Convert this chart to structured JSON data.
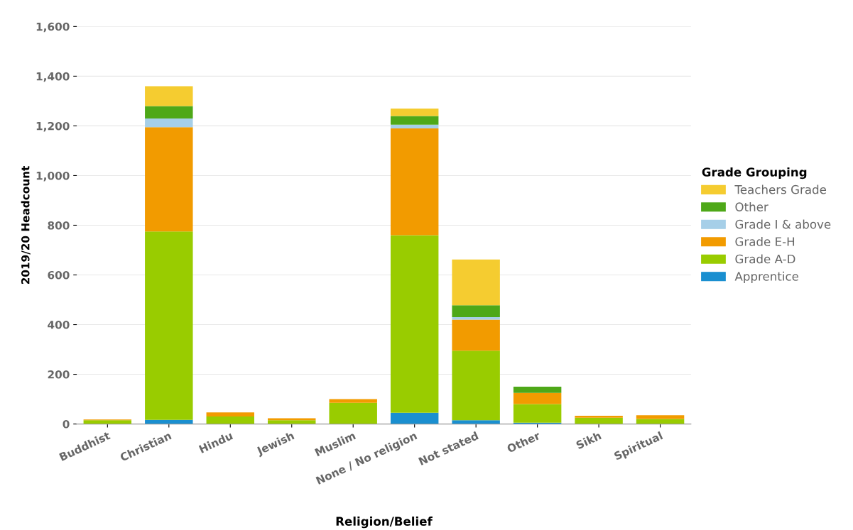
{
  "chart_data": {
    "type": "bar",
    "stacked": true,
    "xlabel": "Religion/Belief",
    "ylabel": "2019/20 Headcount",
    "legend_title": "Grade Grouping",
    "legend": "right",
    "grid": "y",
    "categories": [
      "Buddhist",
      "Christian",
      "Hindu",
      "Jewish",
      "Muslim",
      "None / No religion",
      "Not stated",
      "Other",
      "Sikh",
      "Spiritual"
    ],
    "ylim": [
      0,
      1600
    ],
    "yticks": [
      {
        "value": 0,
        "label": "0"
      },
      {
        "value": 200,
        "label": "200"
      },
      {
        "value": 400,
        "label": "400"
      },
      {
        "value": 600,
        "label": "600"
      },
      {
        "value": 800,
        "label": "800"
      },
      {
        "value": 1000,
        "label": "1,000"
      },
      {
        "value": 1200,
        "label": "1,200"
      },
      {
        "value": 1400,
        "label": "1,400"
      },
      {
        "value": 1600,
        "label": "1,600"
      }
    ],
    "series": [
      {
        "name": "Apprentice",
        "color": "#1a8fd0",
        "values": [
          null,
          17,
          null,
          null,
          null,
          45,
          15,
          5,
          null,
          null
        ]
      },
      {
        "name": "Grade A-D",
        "color": "#99cc00",
        "values": [
          15,
          758,
          30,
          15,
          85,
          715,
          280,
          75,
          25,
          20
        ]
      },
      {
        "name": "Grade E-H",
        "color": "#f29b00",
        "values": [
          3,
          420,
          17,
          8,
          15,
          430,
          125,
          45,
          8,
          15
        ]
      },
      {
        "name": "Grade I & above",
        "color": "#a6cfe8",
        "values": [
          0,
          35,
          0,
          0,
          0,
          15,
          10,
          0,
          0,
          0
        ]
      },
      {
        "name": "Other",
        "color": "#4ea818",
        "values": [
          0,
          50,
          0,
          0,
          0,
          35,
          48,
          25,
          0,
          0
        ]
      },
      {
        "name": "Teachers Grade",
        "color": "#f5cc30",
        "values": [
          0,
          80,
          0,
          0,
          0,
          30,
          184,
          0,
          0,
          0
        ]
      }
    ]
  }
}
